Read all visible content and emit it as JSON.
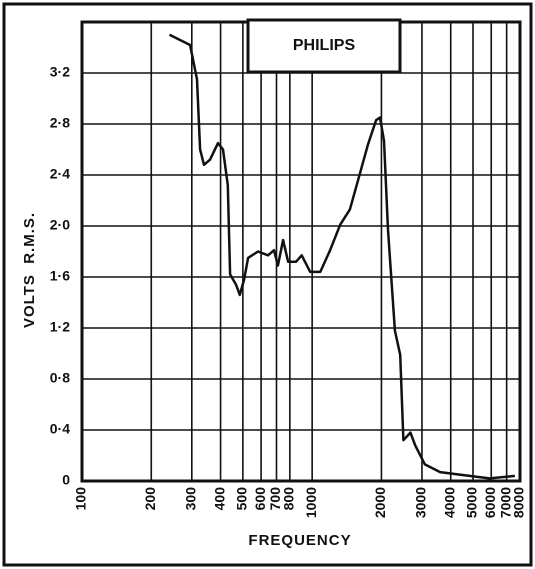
{
  "chart_data": {
    "type": "line",
    "title": "PHILIPS",
    "xlabel": "FREQUENCY",
    "ylabel": "VOLTS  R.M.S.",
    "x": [
      240,
      295,
      316,
      326,
      339,
      360,
      390,
      410,
      430,
      440,
      467,
      485,
      506,
      527,
      582,
      643,
      683,
      710,
      748,
      786,
      852,
      901,
      981,
      1085,
      1197,
      1324,
      1459,
      1584,
      1748,
      1897,
      1971,
      2052,
      2136,
      2289,
      2413,
      2491,
      2673,
      2805,
      3090,
      3596,
      4370,
      5891,
      7600
    ],
    "values": [
      3.5,
      3.42,
      3.15,
      2.6,
      2.48,
      2.52,
      2.65,
      2.6,
      2.32,
      1.62,
      1.54,
      1.46,
      1.58,
      1.75,
      1.8,
      1.77,
      1.81,
      1.69,
      1.89,
      1.72,
      1.72,
      1.77,
      1.64,
      1.64,
      1.81,
      2.01,
      2.13,
      2.36,
      2.64,
      2.83,
      2.85,
      2.67,
      1.97,
      1.18,
      0.99,
      0.32,
      0.38,
      0.28,
      0.13,
      0.07,
      0.05,
      0.02,
      0.04
    ],
    "color": "#111111",
    "xscale": "log",
    "grid": true,
    "xlim": [
      100,
      8000
    ],
    "ylim": [
      0,
      3.6
    ],
    "xticks": [
      100,
      200,
      300,
      400,
      500,
      600,
      700,
      800,
      1000,
      2000,
      3000,
      4000,
      5000,
      6000,
      7000,
      8000
    ],
    "yticks": [
      0,
      {
        "value": 0.4,
        "label": "0·4"
      },
      {
        "value": 0.8,
        "label": "0·8"
      },
      {
        "value": 1.2,
        "label": "1·2"
      },
      {
        "value": 1.6,
        "label": "1·6"
      },
      {
        "value": 2.0,
        "label": "2·0"
      },
      {
        "value": 2.4,
        "label": "2·4"
      },
      {
        "value": 2.8,
        "label": "2·8"
      },
      {
        "value": 3.2,
        "label": "3·2"
      }
    ]
  }
}
